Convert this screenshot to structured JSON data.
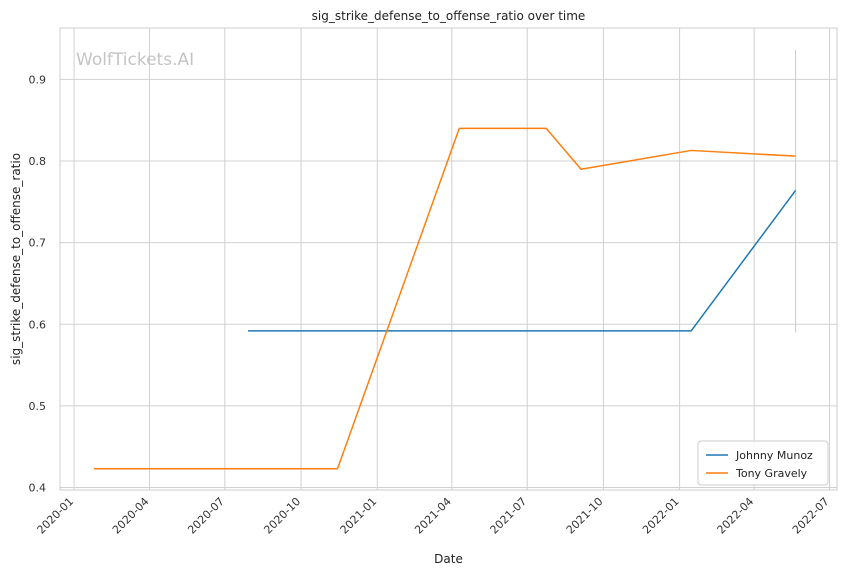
{
  "watermark": "WolfTickets.AI",
  "chart_data": {
    "type": "line",
    "title": "sig_strike_defense_to_offense_ratio over time",
    "xlabel": "Date",
    "ylabel": "sig_strike_defense_to_offense_ratio",
    "x_is_date": true,
    "xlim": [
      "2019-12-15",
      "2022-07-10"
    ],
    "ylim": [
      0.397,
      0.963
    ],
    "x_ticks": [
      "2020-01",
      "2020-04",
      "2020-07",
      "2020-10",
      "2021-01",
      "2021-04",
      "2021-07",
      "2021-10",
      "2022-01",
      "2022-04",
      "2022-07"
    ],
    "y_ticks": [
      0.4,
      0.5,
      0.6,
      0.7,
      0.8,
      0.9
    ],
    "grid": true,
    "legend_position": "lower-right",
    "series": [
      {
        "name": "Johnny Munoz",
        "color": "#1f77b4",
        "points": [
          {
            "x": "2020-07-29",
            "y": 0.592
          },
          {
            "x": "2022-01-15",
            "y": 0.592
          },
          {
            "x": "2022-05-21",
            "y": 0.764
          }
        ]
      },
      {
        "name": "Tony Gravely",
        "color": "#ff7f0e",
        "points": [
          {
            "x": "2020-01-25",
            "y": 0.423
          },
          {
            "x": "2020-11-14",
            "y": 0.423
          },
          {
            "x": "2021-04-10",
            "y": 0.84
          },
          {
            "x": "2021-07-24",
            "y": 0.84
          },
          {
            "x": "2021-09-04",
            "y": 0.79
          },
          {
            "x": "2022-01-15",
            "y": 0.813
          },
          {
            "x": "2022-05-21",
            "y": 0.806
          }
        ]
      }
    ],
    "vertical_marker": {
      "x": "2022-05-21",
      "y_range": [
        0.59,
        0.936
      ],
      "color": "#a8d8d0"
    }
  }
}
